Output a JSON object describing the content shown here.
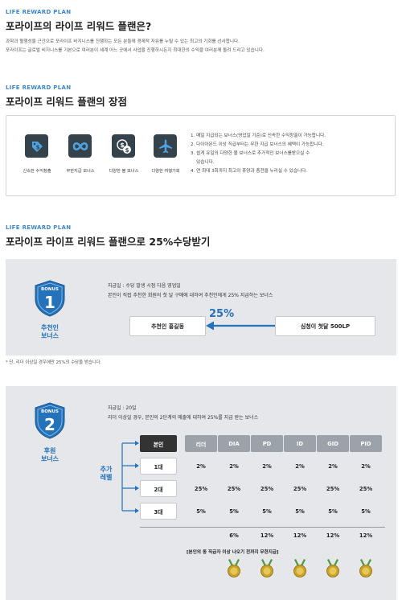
{
  "section1": {
    "eyebrow": "LIFE REWARD PLAN",
    "title": "포라이프의 라이프 리워드 플랜은?",
    "lines": [
      "과학과 혈행성을 근간으로 포라이프 비지니스를 진행하는 모든 분들께 경제적 자유를 누릴 수 있는 최고의 기회를 선사합니다.",
      "포라이프는 글로벌 비지니스를 기본으로 여러분이 세계 어느 곳에서 사업을 진행하시든지 최대한의 수익을 여러분께 돌려 드리고 있습니다."
    ]
  },
  "section2": {
    "eyebrow": "LIFE REWARD PLAN",
    "title": "포라이프 리워드 플랜의 장점",
    "tiles": [
      {
        "icon": "price-tag-dollar-icon",
        "label": "신속한 수익창출"
      },
      {
        "icon": "infinity-icon",
        "label": "무한지급 보너스"
      },
      {
        "icon": "coins-dollar-icon",
        "label": "다양한 볼 보너스"
      },
      {
        "icon": "airplane-icon",
        "label": "다양한 여행기회"
      }
    ],
    "benefits": [
      "1. 매일 지급되는 보너스(영업일 기준)로 신속한 수익창출이 가능합니다.",
      "2. 다이아몬드 이상 직급부터는 무한 지급 보너스의 혜택이 가능합니다.",
      "3. 쉽게 유일의 다양한 볼 보너스로 추가적인 보너스를받으실 수",
      "    있습니다.",
      "4. 연 최대 3회까지 최고의 휴양과 충전을 누리실 수 있습니다."
    ]
  },
  "section3": {
    "eyebrow": "LIFE REWARD PLAN",
    "title": "포라이프 라이프 리워드 플랜으로 25%수당받기"
  },
  "bonus1": {
    "badge_word": "BONUS",
    "badge_number": "1",
    "label_line1": "추천인",
    "label_line2": "보너스",
    "pay_date": "지급일 : 수당 발생 시점 다음 영업일",
    "desc": "본인이 직접 추천한 회원의 첫 달 구매에 대하여 추천인에게 25% 지급하는 보너스",
    "left_box": "추천인 홍길동",
    "arrow_pct": "25%",
    "right_box": "심청이 첫달 500LP",
    "note": "* 단, 리더 이상일 경우에만 25%의 수당을 받습니다."
  },
  "bonus2": {
    "badge_word": "BONUS",
    "badge_number": "2",
    "label_line1": "후원",
    "label_line2": "보너스",
    "pay_date": "지급일 : 20일",
    "desc": "리더 이상일 경우, 본인의 2단계의 매출에 대하여 25%를 지급 받는 보너스",
    "side_label_line1": "추가",
    "side_label_line2": "레벨",
    "table": {
      "header_self": "본인",
      "ranks": [
        "리더",
        "DIA",
        "PD",
        "ID",
        "GID",
        "PID"
      ],
      "rows": [
        {
          "label": "1대",
          "values": [
            "2%",
            "2%",
            "2%",
            "2%",
            "2%",
            "2%"
          ]
        },
        {
          "label": "2대",
          "values": [
            "25%",
            "25%",
            "25%",
            "25%",
            "25%",
            "25%"
          ]
        },
        {
          "label": "3대",
          "values": [
            "5%",
            "5%",
            "5%",
            "5%",
            "5%",
            "5%"
          ]
        }
      ],
      "extra_values": [
        "6%",
        "12%",
        "12%",
        "12%",
        "12%"
      ]
    },
    "footnote": "[본인의 동 직급자 이상 나오기 전까지 무한지급]"
  },
  "colors": {
    "accent_blue": "#2472b9",
    "eyebrow_blue": "#3d87c7",
    "tile_dark": "#34424c",
    "tile_icon": "#4fa3e0",
    "panel_grey": "#e5e7ea",
    "medal_gold": "#c9a227",
    "ribbon_green": "#4e9a3e"
  }
}
